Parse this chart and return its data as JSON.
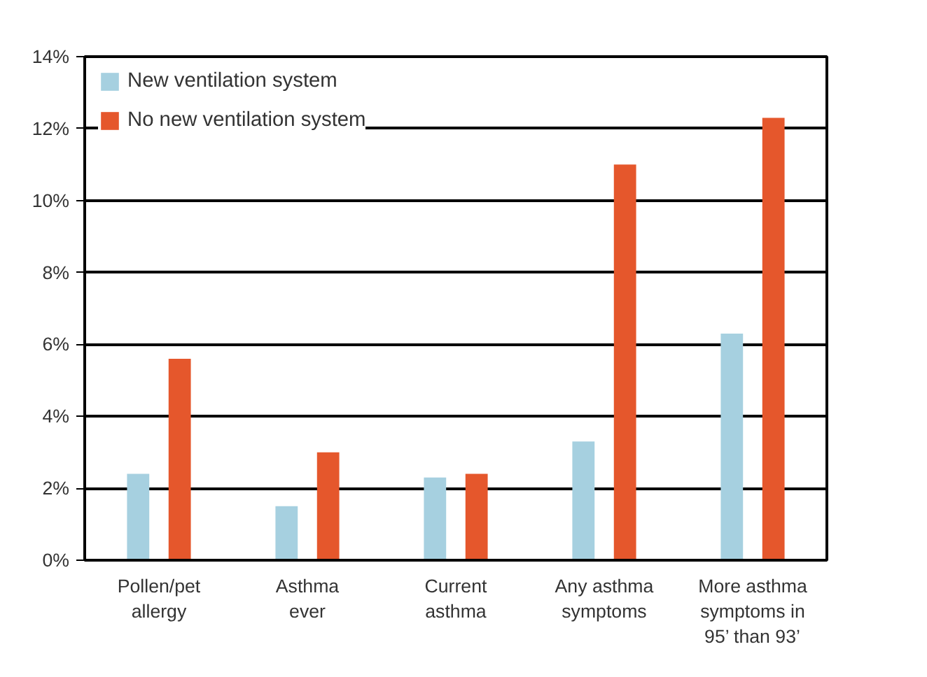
{
  "chart_data": {
    "type": "bar",
    "categories": [
      "Pollen/pet\nallergy",
      "Asthma\never",
      "Current\nasthma",
      "Any asthma\nsymptoms",
      "More asthma\nsymptoms in\n95’ than 93’"
    ],
    "series": [
      {
        "name": "New ventilation system",
        "color": "#a6d0e0",
        "values": [
          2.4,
          1.5,
          2.3,
          3.3,
          6.3
        ]
      },
      {
        "name": "No new ventilation system",
        "color": "#e5572c",
        "values": [
          5.6,
          3.0,
          2.4,
          11.0,
          12.3
        ]
      }
    ],
    "ylim": [
      0,
      14
    ],
    "yticks": [
      {
        "value": 0,
        "label": "0%"
      },
      {
        "value": 2,
        "label": "2%"
      },
      {
        "value": 4,
        "label": "4%"
      },
      {
        "value": 6,
        "label": "6%"
      },
      {
        "value": 8,
        "label": "8%"
      },
      {
        "value": 10,
        "label": "10%"
      },
      {
        "value": 12,
        "label": "12%"
      },
      {
        "value": 14,
        "label": "14%"
      }
    ],
    "grid": "y",
    "legend": "top left"
  }
}
